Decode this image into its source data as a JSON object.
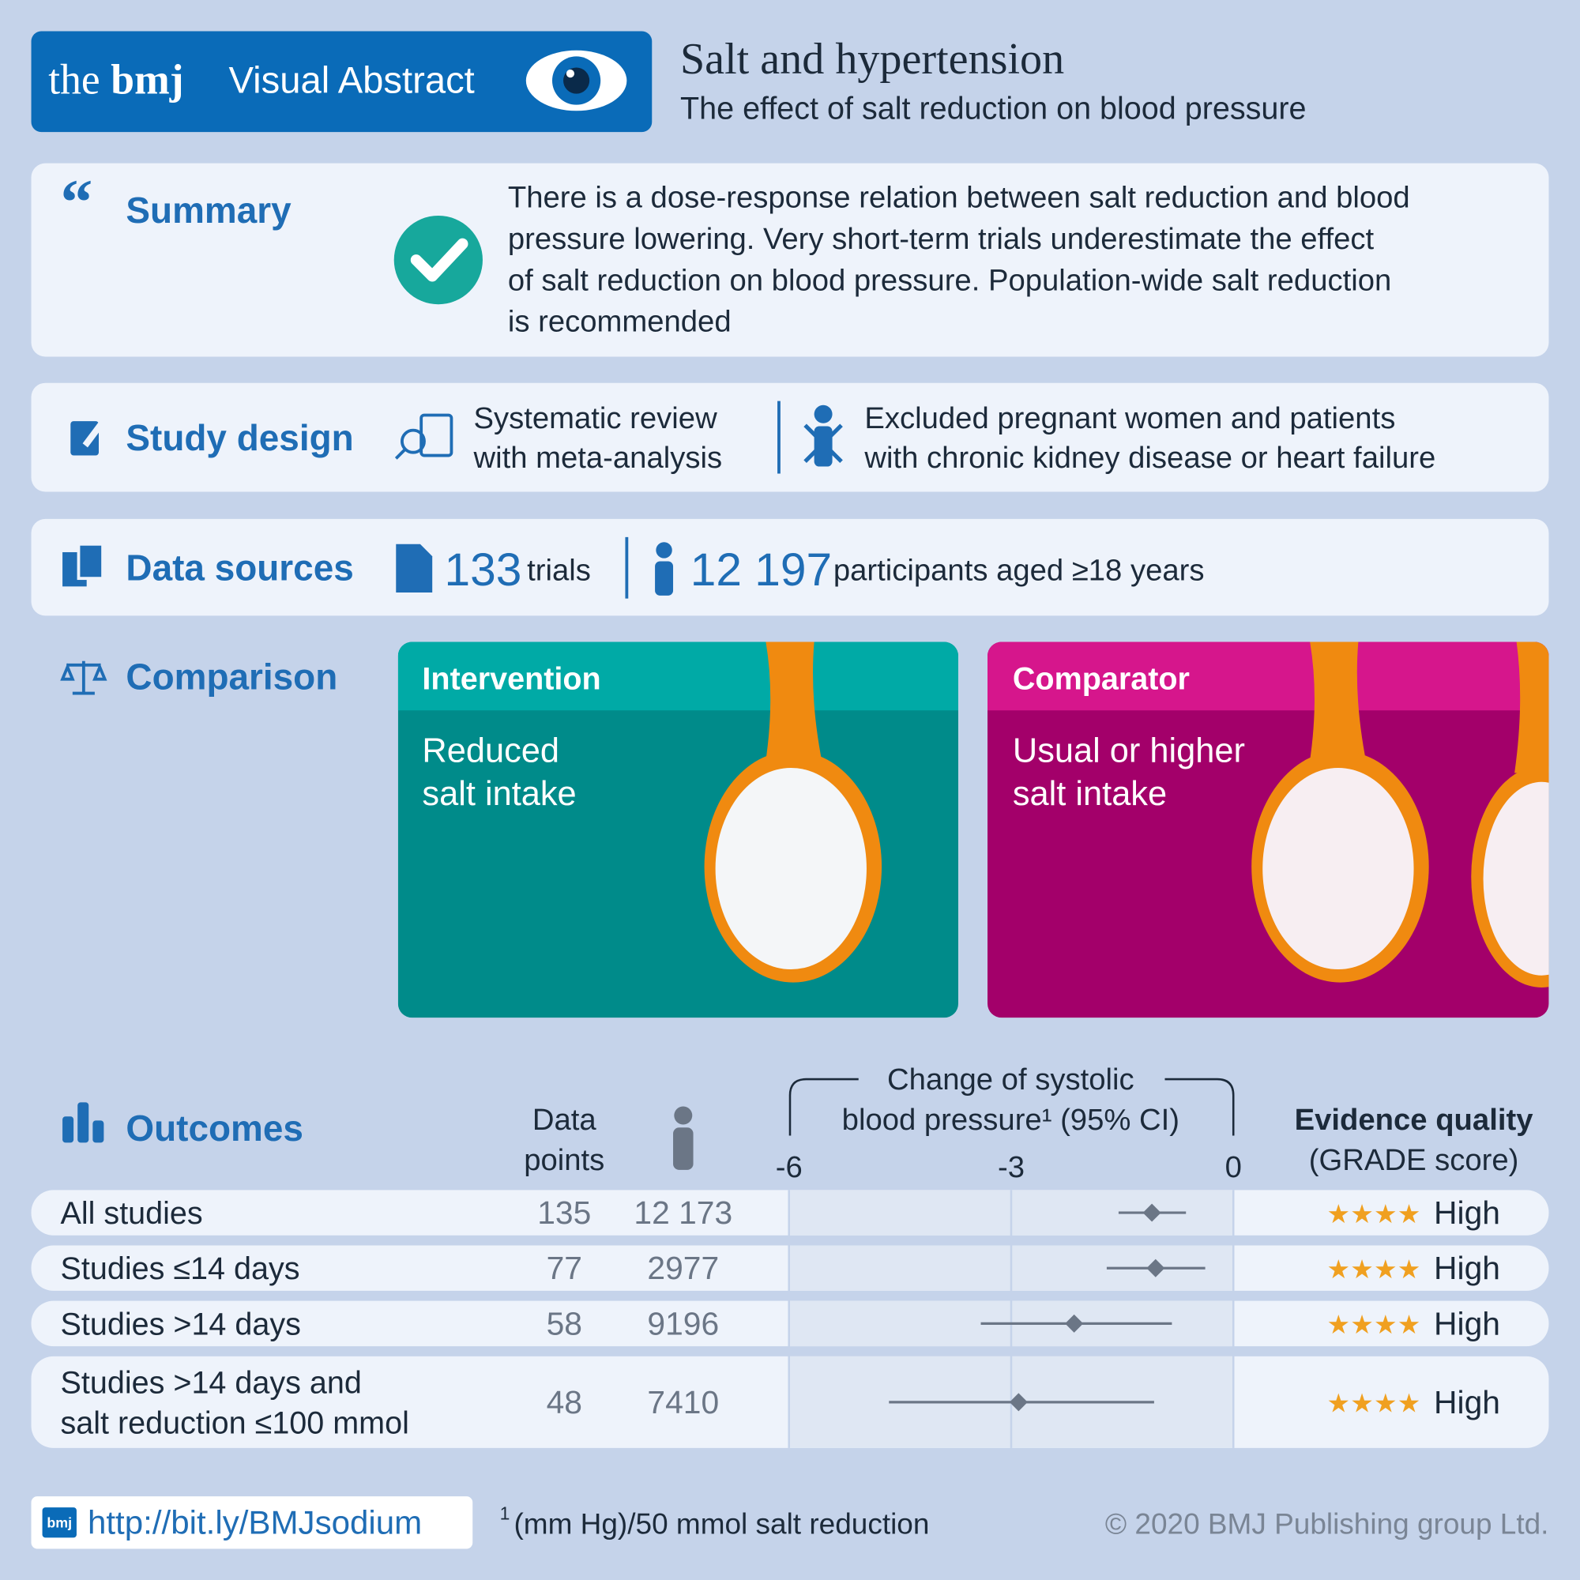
{
  "header": {
    "brand_the": "the",
    "brand_bmj": "bmj",
    "label": "Visual Abstract",
    "title": "Salt and hypertension",
    "subtitle": "The effect of salt reduction on blood pressure"
  },
  "summary": {
    "heading": "Summary",
    "lines": [
      "There is a dose-response relation between salt reduction and blood",
      "pressure lowering. Very short-term trials underestimate the effect",
      "of salt reduction on blood pressure. Population-wide salt reduction",
      "is recommended"
    ]
  },
  "study_design": {
    "heading": "Study design",
    "items": [
      {
        "lines": [
          "Systematic review",
          "with meta-analysis"
        ]
      },
      {
        "lines": [
          "Excluded pregnant women and patients",
          "with chronic kidney disease or heart failure"
        ]
      }
    ]
  },
  "data_sources": {
    "heading": "Data sources",
    "trials_count": "133",
    "trials_label": "trials",
    "participants_count": "12 197",
    "participants_label": "participants aged ≥18 years"
  },
  "comparison": {
    "heading": "Comparison",
    "intervention": {
      "label": "Intervention",
      "lines": [
        "Reduced",
        "salt intake"
      ]
    },
    "comparator": {
      "label": "Comparator",
      "lines": [
        "Usual or higher",
        "salt intake"
      ]
    }
  },
  "outcomes": {
    "heading": "Outcomes",
    "data_points_heading": [
      "Data",
      "points"
    ],
    "plot_title": [
      "Change of systolic",
      "blood pressure¹ (95% CI)"
    ],
    "evidence_heading": "Evidence quality",
    "evidence_subheading": "(GRADE score)",
    "rows": [
      {
        "label": [
          "All studies"
        ],
        "data_points": "135",
        "participants": "12 173",
        "stars": "★★★★",
        "grade": "High"
      },
      {
        "label": [
          "Studies ≤14 days"
        ],
        "data_points": "77",
        "participants": "2977",
        "stars": "★★★★",
        "grade": "High"
      },
      {
        "label": [
          "Studies >14 days"
        ],
        "data_points": "58",
        "participants": "9196",
        "stars": "★★★★",
        "grade": "High"
      },
      {
        "label": [
          "Studies >14 days and",
          "salt reduction ≤100 mmol"
        ],
        "data_points": "48",
        "participants": "7410",
        "stars": "★★★★",
        "grade": "High"
      }
    ]
  },
  "chart_data": {
    "type": "forest",
    "values": [
      -1.1,
      -1.05,
      -2.15,
      -2.9
    ],
    "ci_low": [
      -1.55,
      -1.71,
      -3.41,
      -4.65
    ],
    "ci_high": [
      -0.64,
      -0.38,
      -0.83,
      -1.07
    ],
    "xlim": [
      -6,
      0
    ],
    "xticks": [
      -6,
      -3,
      0
    ],
    "color": "#6b7686"
  },
  "footer": {
    "logo": "bmj",
    "url": "http://bit.ly/BMJsodium",
    "footnote_marker": "1",
    "footnote": "(mm Hg)/50 mmol salt reduction",
    "copyright": "© 2020 BMJ Publishing group Ltd."
  }
}
